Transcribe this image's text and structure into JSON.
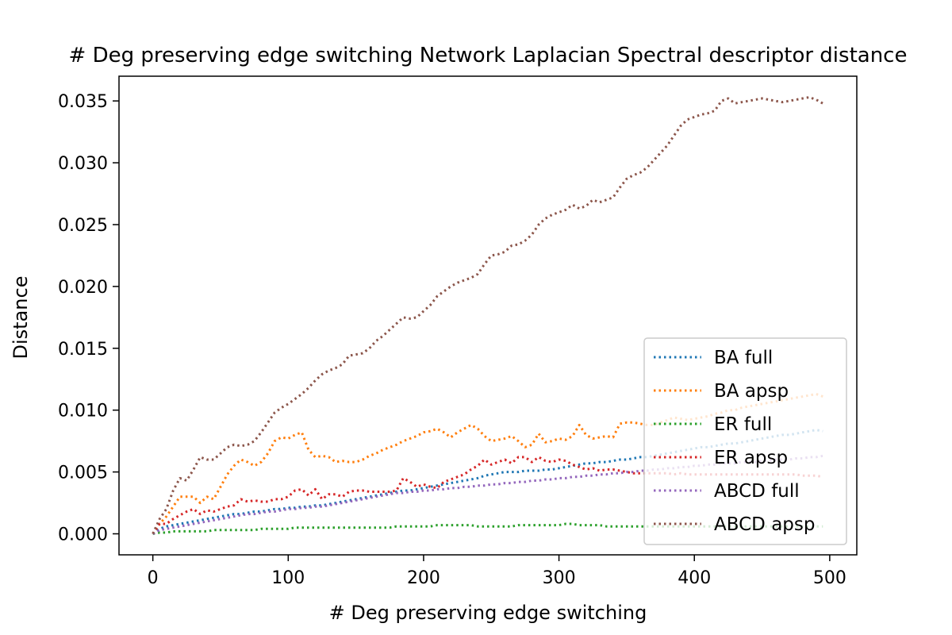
{
  "chart_data": {
    "type": "line",
    "title": "# Deg preserving edge switching Network Laplacian Spectral descriptor distance",
    "xlabel": "# Deg preserving edge switching",
    "ylabel": "Distance",
    "xlim": [
      -25,
      520
    ],
    "ylim": [
      -0.0017,
      0.037
    ],
    "xticks": [
      0,
      100,
      200,
      300,
      400,
      500
    ],
    "xtick_labels": [
      "0",
      "100",
      "200",
      "300",
      "400",
      "500"
    ],
    "yticks": [
      0,
      0.005,
      0.01,
      0.015,
      0.02,
      0.025,
      0.03,
      0.035
    ],
    "ytick_labels": [
      "0.000",
      "0.005",
      "0.010",
      "0.015",
      "0.020",
      "0.025",
      "0.030",
      "0.035"
    ],
    "grid": false,
    "legend_position": "lower-right",
    "line_style": "dotted",
    "x": [
      0,
      5,
      10,
      15,
      20,
      25,
      30,
      35,
      40,
      45,
      50,
      55,
      60,
      65,
      70,
      75,
      80,
      85,
      90,
      95,
      100,
      105,
      110,
      115,
      120,
      125,
      130,
      135,
      140,
      145,
      150,
      155,
      160,
      165,
      170,
      175,
      180,
      185,
      190,
      195,
      200,
      205,
      210,
      215,
      220,
      225,
      230,
      235,
      240,
      245,
      250,
      255,
      260,
      265,
      270,
      275,
      280,
      285,
      290,
      295,
      300,
      305,
      310,
      315,
      320,
      325,
      330,
      335,
      340,
      345,
      350,
      355,
      360,
      365,
      370,
      375,
      380,
      385,
      390,
      395,
      400,
      405,
      410,
      415,
      420,
      425,
      430,
      435,
      440,
      445,
      450,
      455,
      460,
      465,
      470,
      475,
      480,
      485,
      490,
      495
    ],
    "series": [
      {
        "name": "BA full",
        "color": "#1f77b4",
        "values": [
          0.0,
          0.0004,
          0.0006,
          0.0007,
          0.0008,
          0.0009,
          0.001,
          0.0011,
          0.0012,
          0.0013,
          0.0014,
          0.0015,
          0.0016,
          0.0016,
          0.0017,
          0.0018,
          0.0018,
          0.0019,
          0.002,
          0.002,
          0.0021,
          0.0021,
          0.0022,
          0.0022,
          0.0023,
          0.0023,
          0.0024,
          0.0025,
          0.0026,
          0.0027,
          0.0028,
          0.0029,
          0.003,
          0.0031,
          0.0032,
          0.0033,
          0.0034,
          0.0035,
          0.0035,
          0.0036,
          0.0037,
          0.0038,
          0.0039,
          0.004,
          0.0041,
          0.0042,
          0.0043,
          0.0044,
          0.0045,
          0.0047,
          0.0048,
          0.0049,
          0.005,
          0.005,
          0.005,
          0.0051,
          0.0051,
          0.0051,
          0.0052,
          0.0052,
          0.0053,
          0.0054,
          0.0055,
          0.0056,
          0.0057,
          0.0057,
          0.0058,
          0.0058,
          0.0059,
          0.006,
          0.006,
          0.0061,
          0.0062,
          0.0062,
          0.0063,
          0.0064,
          0.0065,
          0.0066,
          0.0067,
          0.0068,
          0.0069,
          0.007,
          0.007,
          0.0071,
          0.0072,
          0.0073,
          0.0073,
          0.0074,
          0.0075,
          0.0076,
          0.0077,
          0.0078,
          0.0079,
          0.008,
          0.008,
          0.0081,
          0.0082,
          0.0083,
          0.0084,
          0.0083
        ]
      },
      {
        "name": "BA apsp",
        "color": "#ff7f0e",
        "values": [
          0.0,
          0.0008,
          0.0014,
          0.0022,
          0.003,
          0.003,
          0.003,
          0.0025,
          0.003,
          0.0028,
          0.0038,
          0.0048,
          0.0055,
          0.006,
          0.0058,
          0.0055,
          0.0058,
          0.0065,
          0.0075,
          0.0078,
          0.0077,
          0.008,
          0.0082,
          0.0068,
          0.0062,
          0.0063,
          0.0062,
          0.0058,
          0.0059,
          0.0058,
          0.0058,
          0.006,
          0.0063,
          0.0065,
          0.0068,
          0.007,
          0.0072,
          0.0075,
          0.0077,
          0.0079,
          0.0082,
          0.0083,
          0.0085,
          0.0082,
          0.0078,
          0.0082,
          0.0085,
          0.0088,
          0.0085,
          0.0079,
          0.0075,
          0.0076,
          0.0077,
          0.0079,
          0.0075,
          0.007,
          0.0072,
          0.0081,
          0.0074,
          0.0075,
          0.0077,
          0.0076,
          0.0079,
          0.0088,
          0.008,
          0.0077,
          0.0078,
          0.0079,
          0.0078,
          0.0089,
          0.009,
          0.009,
          0.0089,
          0.0088,
          0.0088,
          0.009,
          0.0092,
          0.0094,
          0.0093,
          0.0092,
          0.0093,
          0.0094,
          0.0095,
          0.0097,
          0.0098,
          0.01,
          0.01,
          0.0102,
          0.0103,
          0.0104,
          0.0105,
          0.0106,
          0.0107,
          0.0108,
          0.0109,
          0.011,
          0.0111,
          0.0112,
          0.0113,
          0.0111
        ]
      },
      {
        "name": "ER full",
        "color": "#2ca02c",
        "values": [
          0.0,
          0.0001,
          0.0001,
          0.0002,
          0.0002,
          0.0002,
          0.0002,
          0.0002,
          0.0002,
          0.0003,
          0.0003,
          0.0003,
          0.0003,
          0.0003,
          0.0003,
          0.0003,
          0.0004,
          0.0004,
          0.0004,
          0.0004,
          0.0004,
          0.0005,
          0.0005,
          0.0005,
          0.0005,
          0.0005,
          0.0005,
          0.0005,
          0.0005,
          0.0005,
          0.0005,
          0.0005,
          0.0005,
          0.0005,
          0.0005,
          0.0005,
          0.0006,
          0.0006,
          0.0006,
          0.0006,
          0.0006,
          0.0006,
          0.0007,
          0.0007,
          0.0007,
          0.0007,
          0.0007,
          0.0007,
          0.0006,
          0.0006,
          0.0006,
          0.0006,
          0.0006,
          0.0006,
          0.0007,
          0.0007,
          0.0007,
          0.0007,
          0.0007,
          0.0007,
          0.0007,
          0.0008,
          0.0008,
          0.0007,
          0.0007,
          0.0007,
          0.0007,
          0.0006,
          0.0006,
          0.0006,
          0.0006,
          0.0006,
          0.0006,
          0.0006,
          0.0006,
          0.0006,
          0.0006,
          0.0006,
          0.0006,
          0.0006,
          0.0006,
          0.0006,
          0.0006,
          0.0006,
          0.0006,
          0.0006,
          0.0006,
          0.0006,
          0.0006,
          0.0006,
          0.0006,
          0.0006,
          0.0006,
          0.0006,
          0.0006,
          0.0006,
          0.0006,
          0.0006,
          0.0006,
          0.0006
        ]
      },
      {
        "name": "ER apsp",
        "color": "#d62728",
        "values": [
          0.0,
          0.0008,
          0.0008,
          0.0012,
          0.0015,
          0.0018,
          0.002,
          0.0016,
          0.0019,
          0.0018,
          0.002,
          0.0022,
          0.0023,
          0.0028,
          0.0026,
          0.0027,
          0.0026,
          0.0026,
          0.0028,
          0.0028,
          0.003,
          0.0035,
          0.0036,
          0.0031,
          0.0036,
          0.0028,
          0.0032,
          0.0032,
          0.003,
          0.0034,
          0.0035,
          0.0035,
          0.0034,
          0.0034,
          0.0034,
          0.0034,
          0.0035,
          0.0045,
          0.0042,
          0.0038,
          0.004,
          0.0038,
          0.0037,
          0.0042,
          0.0044,
          0.0046,
          0.0048,
          0.0052,
          0.0055,
          0.006,
          0.0056,
          0.0058,
          0.006,
          0.0057,
          0.0062,
          0.0062,
          0.0058,
          0.0062,
          0.0059,
          0.0058,
          0.006,
          0.0059,
          0.0056,
          0.0054,
          0.0052,
          0.0053,
          0.0051,
          0.0052,
          0.0052,
          0.0051,
          0.005,
          0.0049,
          0.0049,
          0.0049,
          0.0049,
          0.0049,
          0.0049,
          0.0048,
          0.0049,
          0.0048,
          0.0048,
          0.0048,
          0.0048,
          0.0048,
          0.0048,
          0.0048,
          0.0048,
          0.0048,
          0.0048,
          0.0048,
          0.0048,
          0.0048,
          0.0048,
          0.0048,
          0.0048,
          0.0048,
          0.0047,
          0.0047,
          0.0047,
          0.0046
        ]
      },
      {
        "name": "ABCD full",
        "color": "#9467bd",
        "values": [
          0.0,
          0.0003,
          0.0004,
          0.0005,
          0.0006,
          0.0007,
          0.0008,
          0.0009,
          0.001,
          0.0011,
          0.0012,
          0.0013,
          0.0014,
          0.0015,
          0.0016,
          0.0016,
          0.0017,
          0.0018,
          0.0018,
          0.0019,
          0.002,
          0.002,
          0.0021,
          0.0021,
          0.0022,
          0.0022,
          0.0023,
          0.0024,
          0.0025,
          0.0026,
          0.0027,
          0.0028,
          0.0029,
          0.003,
          0.0031,
          0.0032,
          0.0033,
          0.0033,
          0.0034,
          0.0034,
          0.0035,
          0.0035,
          0.0036,
          0.0036,
          0.0037,
          0.0037,
          0.0038,
          0.0038,
          0.0039,
          0.0039,
          0.004,
          0.004,
          0.0041,
          0.0041,
          0.0042,
          0.0042,
          0.0043,
          0.0043,
          0.0044,
          0.0044,
          0.0045,
          0.0045,
          0.0046,
          0.0046,
          0.0047,
          0.0047,
          0.0048,
          0.0048,
          0.0049,
          0.0049,
          0.005,
          0.005,
          0.0051,
          0.0051,
          0.0052,
          0.0052,
          0.0053,
          0.0053,
          0.0054,
          0.0054,
          0.0055,
          0.0055,
          0.0056,
          0.0056,
          0.0057,
          0.0057,
          0.0057,
          0.0058,
          0.0058,
          0.0058,
          0.0059,
          0.0059,
          0.006,
          0.006,
          0.006,
          0.0061,
          0.0061,
          0.0062,
          0.0062,
          0.0063
        ]
      },
      {
        "name": "ABCD apsp",
        "color": "#8c564b",
        "values": [
          0.0,
          0.0012,
          0.002,
          0.0035,
          0.0045,
          0.0043,
          0.0052,
          0.0062,
          0.006,
          0.006,
          0.0065,
          0.007,
          0.0072,
          0.0071,
          0.0072,
          0.0075,
          0.0082,
          0.009,
          0.0098,
          0.0102,
          0.0105,
          0.0109,
          0.0113,
          0.0118,
          0.0124,
          0.0129,
          0.0132,
          0.0134,
          0.0137,
          0.0144,
          0.0145,
          0.0146,
          0.015,
          0.0156,
          0.016,
          0.0165,
          0.017,
          0.0175,
          0.0174,
          0.0175,
          0.018,
          0.0185,
          0.0192,
          0.0196,
          0.02,
          0.0203,
          0.0205,
          0.0207,
          0.021,
          0.0218,
          0.0225,
          0.0226,
          0.0228,
          0.0233,
          0.0234,
          0.0237,
          0.0242,
          0.025,
          0.0255,
          0.0258,
          0.026,
          0.0262,
          0.0266,
          0.0263,
          0.0265,
          0.027,
          0.0268,
          0.027,
          0.0272,
          0.028,
          0.0287,
          0.029,
          0.0292,
          0.0296,
          0.0302,
          0.0308,
          0.0314,
          0.0322,
          0.033,
          0.0335,
          0.0337,
          0.0339,
          0.034,
          0.0342,
          0.035,
          0.0352,
          0.0348,
          0.0349,
          0.035,
          0.0351,
          0.0352,
          0.0351,
          0.035,
          0.0349,
          0.035,
          0.0351,
          0.0352,
          0.0353,
          0.0351,
          0.0348
        ]
      }
    ]
  }
}
